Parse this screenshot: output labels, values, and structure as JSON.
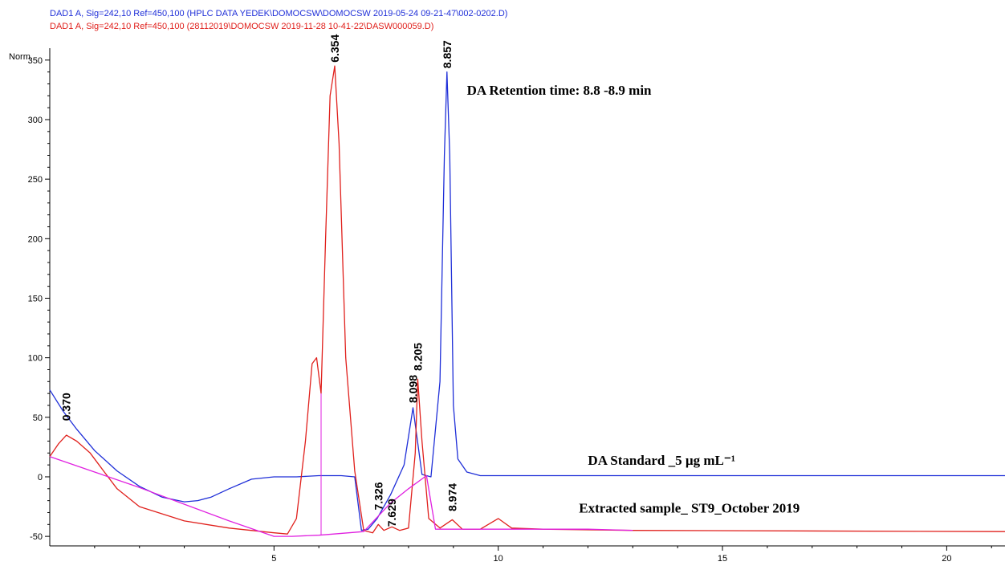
{
  "header": {
    "line1": "DAD1 A, Sig=242,10 Ref=450,100 (HPLC DATA YEDEK\\DOMOCSW\\DOMOCSW 2019-05-24 09-21-47\\002-0202.D)",
    "line2": "DAD1 A, Sig=242,10 Ref=450,100 (28112019\\DOMOCSW 2019-11-28 10-41-22\\DASW000059.D)",
    "line1_color": "#1f2fd8",
    "line2_color": "#e0201c"
  },
  "chart_data": {
    "type": "line",
    "ylabel": "Norm.",
    "xlabel": "",
    "xlim": [
      0.0,
      21.3
    ],
    "ylim": [
      -58,
      360
    ],
    "x_ticks": [
      5,
      10,
      15,
      20
    ],
    "y_ticks": [
      -50,
      0,
      50,
      100,
      150,
      200,
      250,
      300,
      350
    ],
    "grid": false,
    "series": [
      {
        "color": "#1f2fd8",
        "x": [
          0.0,
          0.3,
          0.6,
          1.0,
          1.5,
          2.0,
          2.5,
          3.0,
          3.3,
          3.6,
          4.0,
          4.5,
          5.0,
          5.5,
          6.0,
          6.5,
          6.8,
          6.95,
          7.1,
          7.3,
          7.6,
          7.9,
          8.1,
          8.2,
          8.3,
          8.5,
          8.7,
          8.8,
          8.857,
          8.92,
          9.0,
          9.1,
          9.3,
          9.6,
          10.0,
          12.0,
          15.0,
          18.0,
          21.3
        ],
        "y": [
          73,
          55,
          40,
          22,
          5,
          -8,
          -17,
          -21,
          -20,
          -17,
          -10,
          -2,
          0,
          0,
          1,
          1,
          0,
          -45,
          -44,
          -35,
          -15,
          10,
          58,
          30,
          2,
          0,
          80,
          270,
          340,
          270,
          60,
          15,
          4,
          1,
          1,
          1,
          1,
          1,
          1
        ]
      },
      {
        "color": "#e0201c",
        "x": [
          0.0,
          0.2,
          0.37,
          0.6,
          0.9,
          1.2,
          1.5,
          2.0,
          3.0,
          4.0,
          5.0,
          5.3,
          5.5,
          5.7,
          5.85,
          5.95,
          6.05,
          6.15,
          6.25,
          6.354,
          6.45,
          6.6,
          6.8,
          7.0,
          7.2,
          7.326,
          7.45,
          7.629,
          7.8,
          8.0,
          8.15,
          8.205,
          8.3,
          8.45,
          8.7,
          8.974,
          9.2,
          9.6,
          10.0,
          10.3,
          11.0,
          13.0,
          21.3
        ],
        "y": [
          17,
          28,
          35,
          30,
          20,
          5,
          -10,
          -25,
          -37,
          -43,
          -47,
          -48,
          -35,
          30,
          95,
          100,
          70,
          200,
          320,
          345,
          280,
          100,
          5,
          -45,
          -47,
          -40,
          -45,
          -42,
          -45,
          -43,
          20,
          82,
          30,
          -35,
          -43,
          -36,
          -44,
          -44,
          -35,
          -43,
          -44,
          -45,
          -46
        ]
      },
      {
        "color": "#e020e0",
        "x": [
          0.0,
          1.0,
          2.0,
          3.0,
          4.0,
          5.0,
          5.4,
          6.0,
          7.0,
          7.6,
          8.0,
          8.4,
          8.6,
          9.0,
          10.0,
          12.0,
          13.0
        ],
        "y": [
          17,
          4,
          -9,
          -23,
          -37,
          -50,
          -50,
          -49,
          -46,
          -22,
          -10,
          1,
          -44,
          -44,
          -44,
          -44,
          -45
        ]
      }
    ],
    "drop_lines": [
      {
        "x": 6.05,
        "y": 70
      },
      {
        "x": 7.6,
        "y": -22
      }
    ],
    "peak_labels": [
      {
        "text": "0.370",
        "x": 0.37,
        "y": 47
      },
      {
        "text": "6.354",
        "x": 6.354,
        "y": 348
      },
      {
        "text": "8.857",
        "x": 8.857,
        "y": 343
      },
      {
        "text": "8.098",
        "x": 8.098,
        "y": 62
      },
      {
        "text": "8.205",
        "x": 8.205,
        "y": 89
      },
      {
        "text": "7.326",
        "x": 7.326,
        "y": -28
      },
      {
        "text": "7.629",
        "x": 7.629,
        "y": -42
      },
      {
        "text": "8.974",
        "x": 8.974,
        "y": -29
      }
    ],
    "annotations": [
      {
        "text": "DA  Retention time: 8.8 -8.9 min",
        "x": 9.3,
        "y": 321
      },
      {
        "text": "DA Standard _5 µg mL⁻¹",
        "x": 12.0,
        "y": 10
      },
      {
        "text": "Extracted sample_ ST9_October 2019",
        "x": 11.8,
        "y": -30
      }
    ]
  }
}
